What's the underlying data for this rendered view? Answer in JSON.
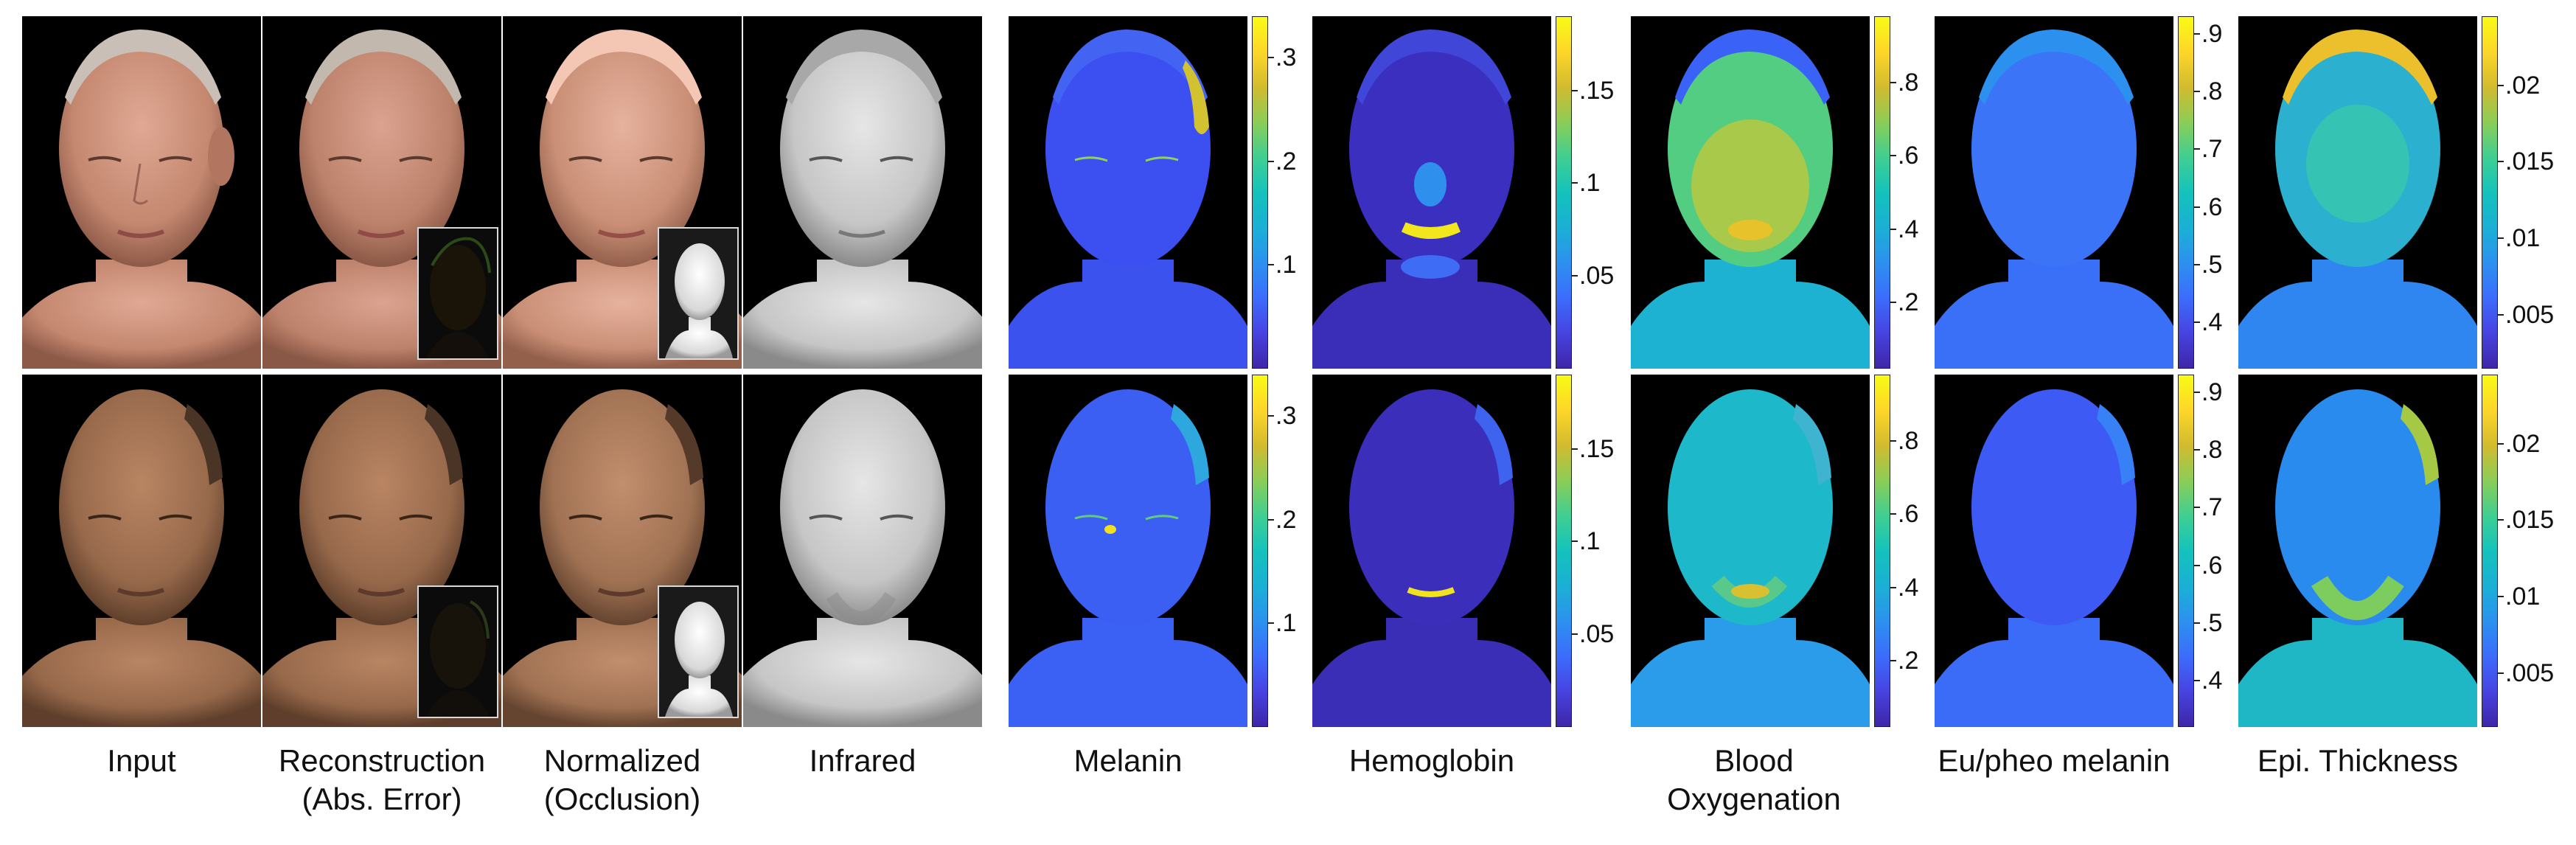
{
  "figure": {
    "captions": [
      {
        "id": "input",
        "lines": [
          "Input"
        ]
      },
      {
        "id": "reconstruction",
        "lines": [
          "Reconstruction",
          "(Abs. Error)"
        ]
      },
      {
        "id": "normalized",
        "lines": [
          "Normalized",
          "(Occlusion)"
        ]
      },
      {
        "id": "infrared",
        "lines": [
          "Infrared"
        ]
      },
      {
        "id": "melanin",
        "lines": [
          "Melanin"
        ]
      },
      {
        "id": "hemoglobin",
        "lines": [
          "Hemoglobin"
        ]
      },
      {
        "id": "blood-oxygenation",
        "lines": [
          "Blood Oxygenation"
        ]
      },
      {
        "id": "eu-pheo-melanin",
        "lines": [
          "Eu/pheo melanin"
        ]
      },
      {
        "id": "epi-thickness",
        "lines": [
          "Epi. Thickness"
        ]
      }
    ],
    "colorbars": [
      {
        "id": "melanin",
        "ticks": [
          ".3",
          ".2",
          ".1"
        ],
        "tick_values": [
          0.3,
          0.2,
          0.1
        ],
        "range": [
          0.0,
          0.34
        ]
      },
      {
        "id": "hemoglobin",
        "ticks": [
          ".15",
          ".1",
          ".05"
        ],
        "tick_values": [
          0.15,
          0.1,
          0.05
        ],
        "range": [
          0.0,
          0.19
        ]
      },
      {
        "id": "blood-oxygenation",
        "ticks": [
          ".8",
          ".6",
          ".4",
          ".2"
        ],
        "tick_values": [
          0.8,
          0.6,
          0.4,
          0.2
        ],
        "range": [
          0.02,
          0.98
        ]
      },
      {
        "id": "eu-pheo-melanin",
        "ticks": [
          ".9",
          ".8",
          ".7",
          ".6",
          ".5",
          ".4"
        ],
        "tick_values": [
          0.9,
          0.8,
          0.7,
          0.6,
          0.5,
          0.4
        ],
        "range": [
          0.32,
          0.93
        ]
      },
      {
        "id": "epi-thickness",
        "ticks": [
          ".02",
          ".015",
          ".01",
          ".005"
        ],
        "tick_values": [
          0.02,
          0.015,
          0.01,
          0.005
        ],
        "range": [
          0.0015,
          0.0245
        ]
      }
    ],
    "colors": {
      "colormap": [
        "#3e26a8",
        "#4743e1",
        "#3c6cfc",
        "#2c91ef",
        "#1ab0d5",
        "#14c2bc",
        "#3fcf92",
        "#8bcd57",
        "#d2bb2f",
        "#fdd629",
        "#f9fb15"
      ],
      "skin_light": "#c98a72",
      "skin_dark": "#9a6a4a",
      "infrared": "#c8c8c8",
      "background": "#000000"
    }
  }
}
